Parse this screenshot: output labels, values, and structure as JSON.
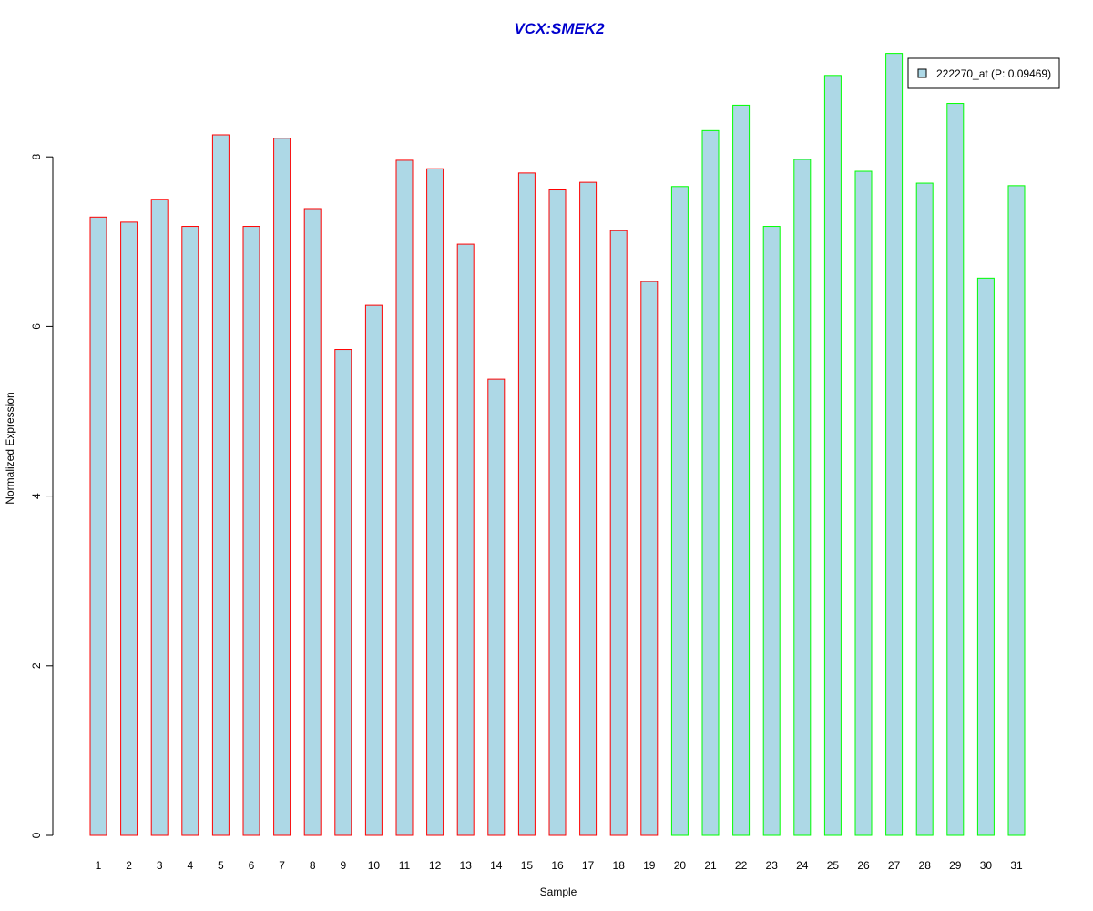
{
  "chart_data": {
    "type": "bar",
    "title": "VCX:SMEK2",
    "xlabel": "Sample",
    "ylabel": "Normalized Expression",
    "categories": [
      "1",
      "2",
      "3",
      "4",
      "5",
      "6",
      "7",
      "8",
      "9",
      "10",
      "11",
      "12",
      "13",
      "14",
      "15",
      "16",
      "17",
      "18",
      "19",
      "20",
      "21",
      "22",
      "23",
      "24",
      "25",
      "26",
      "27",
      "28",
      "29",
      "30",
      "31"
    ],
    "series": [
      {
        "name": "222270_at (P: 0.09469)",
        "values": [
          7.29,
          7.23,
          7.5,
          7.18,
          8.26,
          7.18,
          8.22,
          7.39,
          5.73,
          6.25,
          7.96,
          7.86,
          6.97,
          5.38,
          7.81,
          7.61,
          7.7,
          7.13,
          6.53,
          7.65,
          8.31,
          8.61,
          7.18,
          7.97,
          8.96,
          7.83,
          9.22,
          7.69,
          8.63,
          6.57,
          7.66
        ]
      }
    ],
    "group_colors": [
      "#ff0000",
      "#ff0000",
      "#ff0000",
      "#ff0000",
      "#ff0000",
      "#ff0000",
      "#ff0000",
      "#ff0000",
      "#ff0000",
      "#ff0000",
      "#ff0000",
      "#ff0000",
      "#ff0000",
      "#ff0000",
      "#ff0000",
      "#ff0000",
      "#ff0000",
      "#ff0000",
      "#ff0000",
      "#00ff00",
      "#00ff00",
      "#00ff00",
      "#00ff00",
      "#00ff00",
      "#00ff00",
      "#00ff00",
      "#00ff00",
      "#00ff00",
      "#00ff00",
      "#00ff00",
      "#00ff00"
    ],
    "fill_color": "#add8e6",
    "title_color": "#0000cd",
    "yticks": [
      "0",
      "2",
      "4",
      "6",
      "8"
    ],
    "ylim": [
      0,
      9.3
    ],
    "grid": false,
    "legend_position": "top-right"
  }
}
